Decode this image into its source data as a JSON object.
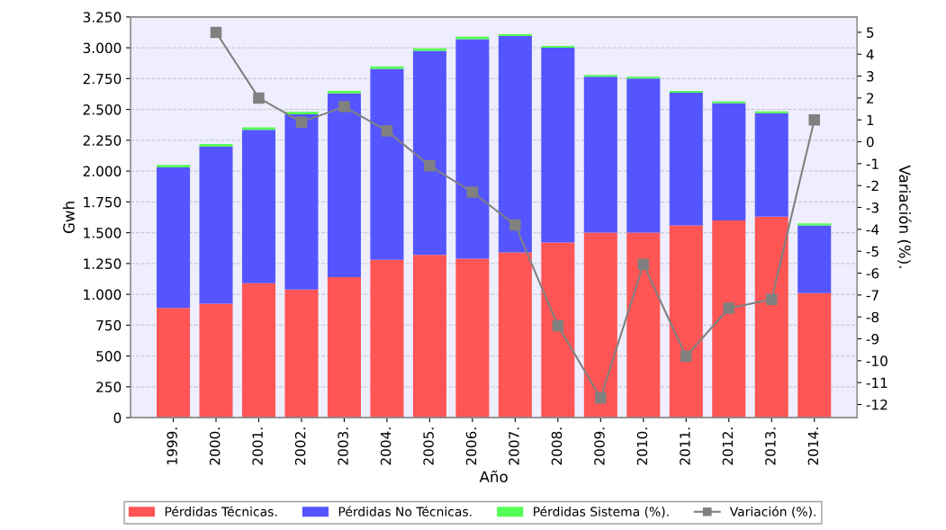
{
  "chart_data": {
    "type": "bar",
    "stacked": true,
    "xlabel": "Año",
    "ylabel": "Gwh",
    "y2label": "Variación (%).",
    "categories": [
      "1999.",
      "2000.",
      "2001.",
      "2002.",
      "2003.",
      "2004.",
      "2005.",
      "2006.",
      "2007.",
      "2008.",
      "2009.",
      "2010.",
      "2011.",
      "2012.",
      "2013.",
      "2014."
    ],
    "series": [
      {
        "name": "Pérdidas Técnicas.",
        "color": "#ff5555",
        "values": [
          890,
          925,
          1090,
          1040,
          1140,
          1280,
          1320,
          1290,
          1340,
          1420,
          1500,
          1500,
          1560,
          1600,
          1630,
          1010
        ]
      },
      {
        "name": "Pérdidas No Técnicas.",
        "color": "#5555ff",
        "values": [
          1140,
          1275,
          1245,
          1420,
          1490,
          1550,
          1655,
          1780,
          1755,
          1580,
          1265,
          1250,
          1075,
          950,
          840,
          550
        ]
      },
      {
        "name": "Pérdidas Sistema (%).",
        "color": "#55ff55",
        "values": [
          20,
          20,
          20,
          20,
          20,
          20,
          20,
          20,
          15,
          15,
          15,
          15,
          15,
          15,
          15,
          15
        ]
      },
      {
        "name": "Variación (%).",
        "type": "line",
        "axis": "y2",
        "color": "#808080",
        "marker": "square",
        "values": [
          null,
          5,
          2,
          0.9,
          1.6,
          0.5,
          -1.1,
          -2.3,
          -3.8,
          -8.4,
          -11.7,
          -5.6,
          -9.8,
          -7.6,
          -7.2,
          1.0
        ]
      }
    ],
    "ylim": [
      0,
      3250
    ],
    "yticks": [
      0,
      {
        "value": 250,
        "label": "250"
      },
      {
        "value": 500,
        "label": "500"
      },
      {
        "value": 750,
        "label": "750"
      },
      {
        "value": 1000,
        "label": "1.000"
      },
      {
        "value": 1250,
        "label": "1.250"
      },
      {
        "value": 1500,
        "label": "1.500"
      },
      {
        "value": 1750,
        "label": "1.750"
      },
      {
        "value": 2000,
        "label": "2.000"
      },
      {
        "value": 2250,
        "label": "2.250"
      },
      {
        "value": 2500,
        "label": "2.500"
      },
      {
        "value": 2750,
        "label": "2.750"
      },
      {
        "value": 3000,
        "label": "3.000"
      },
      {
        "value": 3250,
        "label": "3.250"
      }
    ],
    "y2lim": [
      -12.6,
      5.7
    ],
    "y2ticks": [
      5,
      4,
      3,
      2,
      1,
      0,
      -1,
      -2,
      -3,
      -4,
      -5,
      -6,
      -7,
      -8,
      -9,
      -10,
      -11,
      -12
    ],
    "grid": "y",
    "legend": "bottom"
  }
}
